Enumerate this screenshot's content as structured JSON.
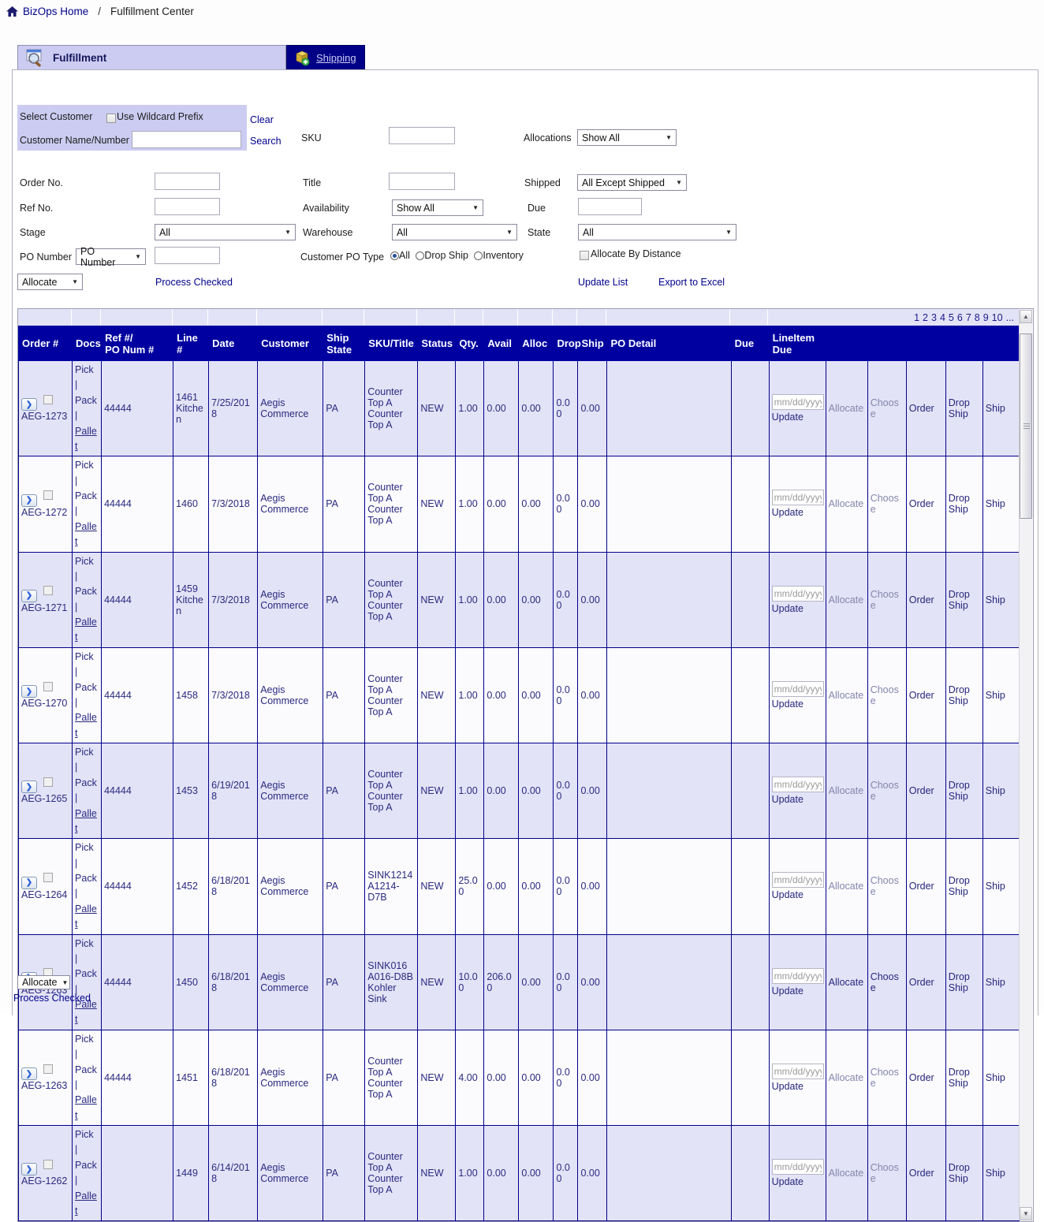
{
  "breadcrumb": {
    "home_label": "BizOps Home",
    "separator": "/",
    "current": "Fulfillment Center"
  },
  "tabs": {
    "fulfillment": "Fulfillment",
    "shipping": "Shipping"
  },
  "filters": {
    "select_customer_label": "Select Customer",
    "use_wildcard_label": "Use Wildcard Prefix",
    "clear_link": "Clear",
    "customer_name_label": "Customer Name/Number",
    "customer_name_value": "",
    "search_link": "Search",
    "sku_label": "SKU",
    "sku_value": "",
    "allocations_label": "Allocations",
    "allocations_value": "Show All",
    "order_no_label": "Order No.",
    "order_no_value": "",
    "title_label": "Title",
    "title_value": "",
    "shipped_label": "Shipped",
    "shipped_value": "All Except Shipped",
    "ref_no_label": "Ref No.",
    "ref_no_value": "",
    "availability_label": "Availability",
    "availability_value": "Show All",
    "due_label": "Due",
    "due_value": "",
    "stage_label": "Stage",
    "stage_value": "All",
    "warehouse_label": "Warehouse",
    "warehouse_value": "All",
    "state_label": "State",
    "state_value": "All",
    "po_number_label": "PO Number",
    "po_number_select_value": "PO Number",
    "po_number_value": "",
    "customer_po_type_label": "Customer PO Type",
    "po_type_options": [
      "All",
      "Drop Ship",
      "Inventory"
    ],
    "po_type_selected": "All",
    "allocate_by_distance_label": "Allocate By Distance"
  },
  "toolbar": {
    "allocate_select_value": "Allocate",
    "process_checked_link": "Process Checked",
    "update_list_link": "Update List",
    "export_excel_link": "Export to Excel"
  },
  "pagination": {
    "pages": [
      "1",
      "2",
      "3",
      "4",
      "5",
      "6",
      "7",
      "8",
      "9",
      "10",
      "..."
    ]
  },
  "table": {
    "headers": {
      "order": "Order #",
      "docs": "Docs",
      "ref": "Ref #/\nPO Num #",
      "line": "Line #",
      "date": "Date",
      "customer": "Customer",
      "ship_state": "Ship\nState",
      "sku": "SKU/Title",
      "status": "Status",
      "qty": "Qty.",
      "avail": "Avail",
      "alloc": "Alloc",
      "drop": "Drop",
      "ship": "Ship",
      "po_detail": "PO Detail",
      "due": "Due",
      "lineitem_due": "LineItem\nDue"
    },
    "docs": {
      "pick": "Pick",
      "pack": "Pack",
      "pallet": "Pallet",
      "sep": "|"
    },
    "rows": [
      {
        "order": "AEG-1273",
        "ref": "44444",
        "line": "1461 Kitchen",
        "date": "7/25/2018",
        "customer": "Aegis Commerce",
        "ship_state": "PA",
        "sku": "Counter Top A Counter Top A",
        "status": "NEW",
        "qty": "1.00",
        "avail": "0.00",
        "alloc": "0.00",
        "drop": "0.00",
        "ship": "0.00",
        "po_detail": "",
        "due": "",
        "allocate_enabled": false
      },
      {
        "order": "AEG-1272",
        "ref": "44444",
        "line": "1460",
        "date": "7/3/2018",
        "customer": "Aegis Commerce",
        "ship_state": "PA",
        "sku": "Counter Top A Counter Top A",
        "status": "NEW",
        "qty": "1.00",
        "avail": "0.00",
        "alloc": "0.00",
        "drop": "0.00",
        "ship": "0.00",
        "po_detail": "",
        "due": "",
        "allocate_enabled": false
      },
      {
        "order": "AEG-1271",
        "ref": "44444",
        "line": "1459 Kitchen",
        "date": "7/3/2018",
        "customer": "Aegis Commerce",
        "ship_state": "PA",
        "sku": "Counter Top A Counter Top A",
        "status": "NEW",
        "qty": "1.00",
        "avail": "0.00",
        "alloc": "0.00",
        "drop": "0.00",
        "ship": "0.00",
        "po_detail": "",
        "due": "",
        "allocate_enabled": false
      },
      {
        "order": "AEG-1270",
        "ref": "44444",
        "line": "1458",
        "date": "7/3/2018",
        "customer": "Aegis Commerce",
        "ship_state": "PA",
        "sku": "Counter Top A Counter Top A",
        "status": "NEW",
        "qty": "1.00",
        "avail": "0.00",
        "alloc": "0.00",
        "drop": "0.00",
        "ship": "0.00",
        "po_detail": "",
        "due": "",
        "allocate_enabled": false
      },
      {
        "order": "AEG-1265",
        "ref": "44444",
        "line": "1453",
        "date": "6/19/2018",
        "customer": "Aegis Commerce",
        "ship_state": "PA",
        "sku": "Counter Top A Counter Top A",
        "status": "NEW",
        "qty": "1.00",
        "avail": "0.00",
        "alloc": "0.00",
        "drop": "0.00",
        "ship": "0.00",
        "po_detail": "",
        "due": "",
        "allocate_enabled": false
      },
      {
        "order": "AEG-1264",
        "ref": "44444",
        "line": "1452",
        "date": "6/18/2018",
        "customer": "Aegis Commerce",
        "ship_state": "PA",
        "sku": "SINK1214 A1214-D7B",
        "status": "NEW",
        "qty": "25.00",
        "avail": "0.00",
        "alloc": "0.00",
        "drop": "0.00",
        "ship": "0.00",
        "po_detail": "",
        "due": "",
        "allocate_enabled": false
      },
      {
        "order": "AEG-1263",
        "ref": "44444",
        "line": "1450",
        "date": "6/18/2018",
        "customer": "Aegis Commerce",
        "ship_state": "PA",
        "sku": "SINK016 A016-D8B Kohler Sink",
        "status": "NEW",
        "qty": "10.00",
        "avail": "206.00",
        "alloc": "0.00",
        "drop": "0.00",
        "ship": "0.00",
        "po_detail": "",
        "due": "",
        "allocate_enabled": true
      },
      {
        "order": "AEG-1263",
        "ref": "44444",
        "line": "1451",
        "date": "6/18/2018",
        "customer": "Aegis Commerce",
        "ship_state": "PA",
        "sku": "Counter Top A Counter Top A",
        "status": "NEW",
        "qty": "4.00",
        "avail": "0.00",
        "alloc": "0.00",
        "drop": "0.00",
        "ship": "0.00",
        "po_detail": "",
        "due": "",
        "allocate_enabled": false
      },
      {
        "order": "AEG-1262",
        "ref": "",
        "line": "1449",
        "date": "6/14/2018",
        "customer": "Aegis Commerce",
        "ship_state": "PA",
        "sku": "Counter Top A Counter Top A",
        "status": "NEW",
        "qty": "1.00",
        "avail": "0.00",
        "alloc": "0.00",
        "drop": "0.00",
        "ship": "0.00",
        "po_detail": "",
        "due": "",
        "allocate_enabled": false
      }
    ]
  },
  "row_actions": {
    "date_placeholder": "mm/dd/yyyy",
    "update": "Update",
    "allocate": "Allocate",
    "choose": "Choose",
    "order": "Order",
    "drop_ship": "Drop Ship",
    "ship": "Ship"
  },
  "footer": {
    "allocate_select_value": "Allocate",
    "process_checked_link": "Process Checked"
  },
  "colors": {
    "header_bg": "#0000a0",
    "grid_border": "#00008b",
    "row_lavender": "#e3e3f7",
    "row_white": "#fbfbfd",
    "tab_active_bg": "#ccccf2",
    "tab_inactive_bg": "#000087",
    "link": "#00008b"
  }
}
